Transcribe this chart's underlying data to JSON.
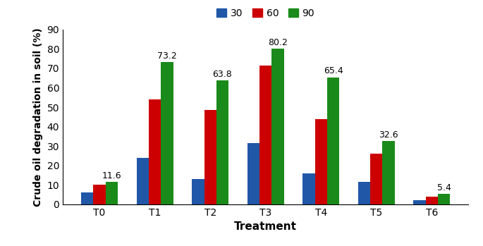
{
  "categories": [
    "T0",
    "T1",
    "T2",
    "T3",
    "T4",
    "T5",
    "T6"
  ],
  "series": {
    "30": [
      6.0,
      24.0,
      13.0,
      31.5,
      16.0,
      11.5,
      2.0
    ],
    "60": [
      10.0,
      54.0,
      48.5,
      71.5,
      44.0,
      26.0,
      4.0
    ],
    "90": [
      11.6,
      73.2,
      63.8,
      80.2,
      65.4,
      32.6,
      5.4
    ]
  },
  "labels_90": [
    "11.6",
    "73.2",
    "63.8",
    "80.2",
    "65.4",
    "32.6",
    "5.4"
  ],
  "colors": {
    "30": "#2157a7",
    "60": "#cc0000",
    "90": "#1a8a1a"
  },
  "legend_labels": [
    "30",
    "60",
    "90"
  ],
  "xlabel": "Treatment",
  "ylabel": "Crude oil degradation in soil (%)",
  "ylim": [
    0,
    90
  ],
  "yticks": [
    0,
    10,
    20,
    30,
    40,
    50,
    60,
    70,
    80,
    90
  ],
  "bar_width": 0.22,
  "figsize": [
    6.85,
    3.49
  ],
  "dpi": 100,
  "label_fontsize": 9.0,
  "axis_label_fontsize": 11,
  "tick_fontsize": 10,
  "legend_fontsize": 10
}
